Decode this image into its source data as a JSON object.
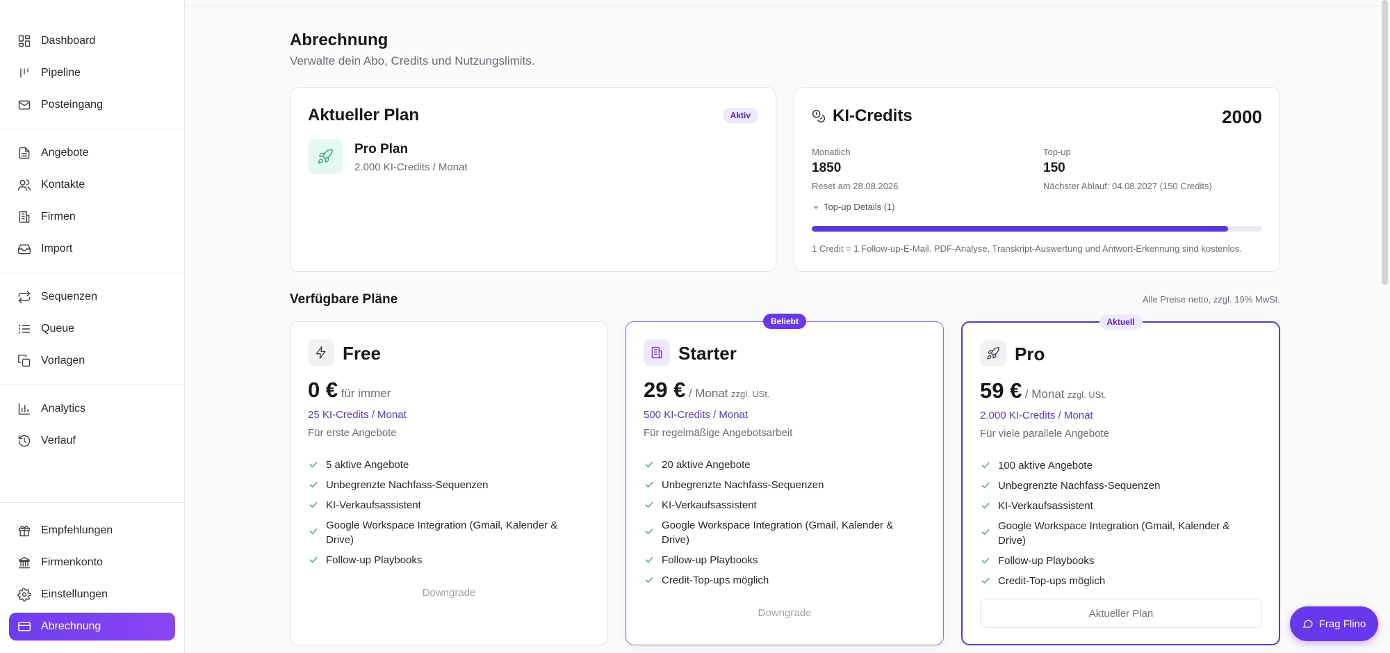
{
  "sidebar": {
    "groups": [
      [
        {
          "label": "Dashboard",
          "icon": "dashboard-icon"
        },
        {
          "label": "Pipeline",
          "icon": "pipeline-icon"
        },
        {
          "label": "Posteingang",
          "icon": "mail-icon"
        }
      ],
      [
        {
          "label": "Angebote",
          "icon": "document-icon"
        },
        {
          "label": "Kontakte",
          "icon": "users-icon"
        },
        {
          "label": "Firmen",
          "icon": "building-icon"
        },
        {
          "label": "Import",
          "icon": "inbox-icon"
        }
      ],
      [
        {
          "label": "Sequenzen",
          "icon": "repeat-icon"
        },
        {
          "label": "Queue",
          "icon": "list-icon"
        },
        {
          "label": "Vorlagen",
          "icon": "copy-icon"
        }
      ],
      [
        {
          "label": "Analytics",
          "icon": "bar-chart-icon"
        },
        {
          "label": "Verlauf",
          "icon": "history-icon"
        }
      ]
    ],
    "bottom": [
      {
        "label": "Empfehlungen",
        "icon": "gift-icon"
      },
      {
        "label": "Firmenkonto",
        "icon": "bank-icon"
      },
      {
        "label": "Einstellungen",
        "icon": "gear-icon"
      },
      {
        "label": "Abrechnung",
        "icon": "credit-card-icon",
        "active": true
      }
    ]
  },
  "page": {
    "title": "Abrechnung",
    "subtitle": "Verwalte dein Abo, Credits und Nutzungslimits."
  },
  "current_plan": {
    "title": "Aktueller Plan",
    "badge": "Aktiv",
    "name": "Pro Plan",
    "credits": "2.000 KI-Credits / Monat",
    "icon": "rocket-icon"
  },
  "ki_credits": {
    "title": "KI-Credits",
    "total": "2000",
    "monthly": {
      "label": "Monatlich",
      "value": "1850",
      "sub": "Reset am 28.08.2026"
    },
    "topup": {
      "label": "Top-up",
      "value": "150",
      "sub": "Nächster Ablauf: 04.08.2027 (150 Credits)"
    },
    "details_label": "Top-up Details (1)",
    "progress_fraction": 0.925,
    "note": "1 Credit = 1 Follow-up-E-Mail. PDF-Analyse, Transkript-Auswertung und Antwort-Erkennung sind kostenlos."
  },
  "plans_section": {
    "title": "Verfügbare Pläne",
    "note": "Alle Preise netto, zzgl. 19% MwSt."
  },
  "plans": [
    {
      "name": "Free",
      "icon": "lightning-icon",
      "price": "0 €",
      "period": "für immer",
      "tax": "",
      "credits": "25 KI-Credits / Monat",
      "description": "Für erste Angebote",
      "features": [
        "5 aktive Angebote",
        "Unbegrenzte Nachfass-Sequenzen",
        "KI-Verkaufsassistent",
        "Google Workspace Integration (Gmail, Kalender & Drive)",
        "Follow-up Playbooks"
      ],
      "action": "Downgrade",
      "flag": ""
    },
    {
      "name": "Starter",
      "icon": "building-icon",
      "price": "29 €",
      "period": "/ Monat",
      "tax": "zzgl. USt.",
      "credits": "500 KI-Credits / Monat",
      "description": "Für regelmäßige Angebotsarbeit",
      "features": [
        "20 aktive Angebote",
        "Unbegrenzte Nachfass-Sequenzen",
        "KI-Verkaufsassistent",
        "Google Workspace Integration (Gmail, Kalender & Drive)",
        "Follow-up Playbooks",
        "Credit-Top-ups möglich"
      ],
      "action": "Downgrade",
      "flag": "Beliebt"
    },
    {
      "name": "Pro",
      "icon": "rocket-icon",
      "price": "59 €",
      "period": "/ Monat",
      "tax": "zzgl. USt.",
      "credits": "2.000 KI-Credits / Monat",
      "description": "Für viele parallele Angebote",
      "features": [
        "100 aktive Angebote",
        "Unbegrenzte Nachfass-Sequenzen",
        "KI-Verkaufsassistent",
        "Google Workspace Integration (Gmail, Kalender & Drive)",
        "Follow-up Playbooks",
        "Credit-Top-ups möglich"
      ],
      "action": "Aktueller Plan",
      "flag": "Aktuell"
    }
  ],
  "assistant_button": "Frag Flino",
  "colors": {
    "accent": "#5a35e8",
    "accent_soft": "#ede8fd",
    "check": "#2fa37a"
  }
}
